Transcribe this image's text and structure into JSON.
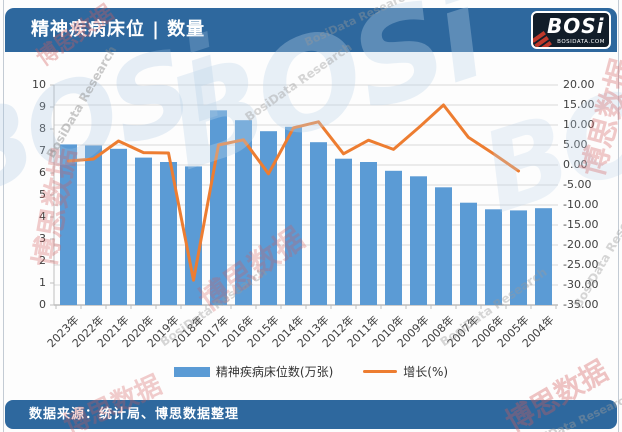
{
  "header": {
    "title": "精神疾病床位 | 数量",
    "logo": {
      "text": "BOSi",
      "subtext": "BOSIDATA.COM"
    }
  },
  "footer": {
    "source": "数据来源：统计局、博思数据整理"
  },
  "watermarks": {
    "brand": "BOSi",
    "cn": "博思数据",
    "en": "BosiData Research"
  },
  "chart_data": {
    "type": "bar",
    "subtype": "bar-line-combo",
    "title": "精神疾病床位 | 数量",
    "categories": [
      "2023年",
      "2022年",
      "2021年",
      "2020年",
      "2019年",
      "2018年",
      "2017年",
      "2016年",
      "2015年",
      "2014年",
      "2013年",
      "2012年",
      "2011年",
      "2010年",
      "2009年",
      "2008年",
      "2007年",
      "2006年",
      "2005年",
      "2004年"
    ],
    "series": [
      {
        "name": "精神疾病床位数(万张)",
        "type": "bar",
        "axis": "left",
        "color": "#5b9bd5",
        "values": [
          7.3,
          7.25,
          7.1,
          6.7,
          6.5,
          6.3,
          8.85,
          8.4,
          7.9,
          8.1,
          7.4,
          6.65,
          6.5,
          6.1,
          5.85,
          5.35,
          4.65,
          4.35,
          4.3,
          4.4
        ]
      },
      {
        "name": "增长(%)",
        "type": "line",
        "axis": "right",
        "color": "#ed7d31",
        "values": [
          1.0,
          1.5,
          6.0,
          3.1,
          3.0,
          -28.8,
          5.0,
          6.3,
          -2.2,
          9.3,
          10.8,
          2.8,
          6.2,
          3.9,
          9.3,
          15.0,
          6.9,
          2.8,
          -1.5,
          null
        ]
      }
    ],
    "left_axis": {
      "min": 0,
      "max": 10,
      "tick_labels": [
        "10",
        "9",
        "8",
        "7",
        "6",
        "5",
        "4",
        "3",
        "2",
        "1",
        "0"
      ]
    },
    "right_axis": {
      "min": -35,
      "max": 20,
      "tick_labels": [
        "20.00",
        "15.00",
        "10.00",
        "5.00",
        "0.00",
        "-5.00",
        "-10.00",
        "-15.00",
        "-20.00",
        "-25.00",
        "-30.00",
        "-35.00"
      ]
    },
    "grid": true,
    "legend_position": "bottom"
  }
}
